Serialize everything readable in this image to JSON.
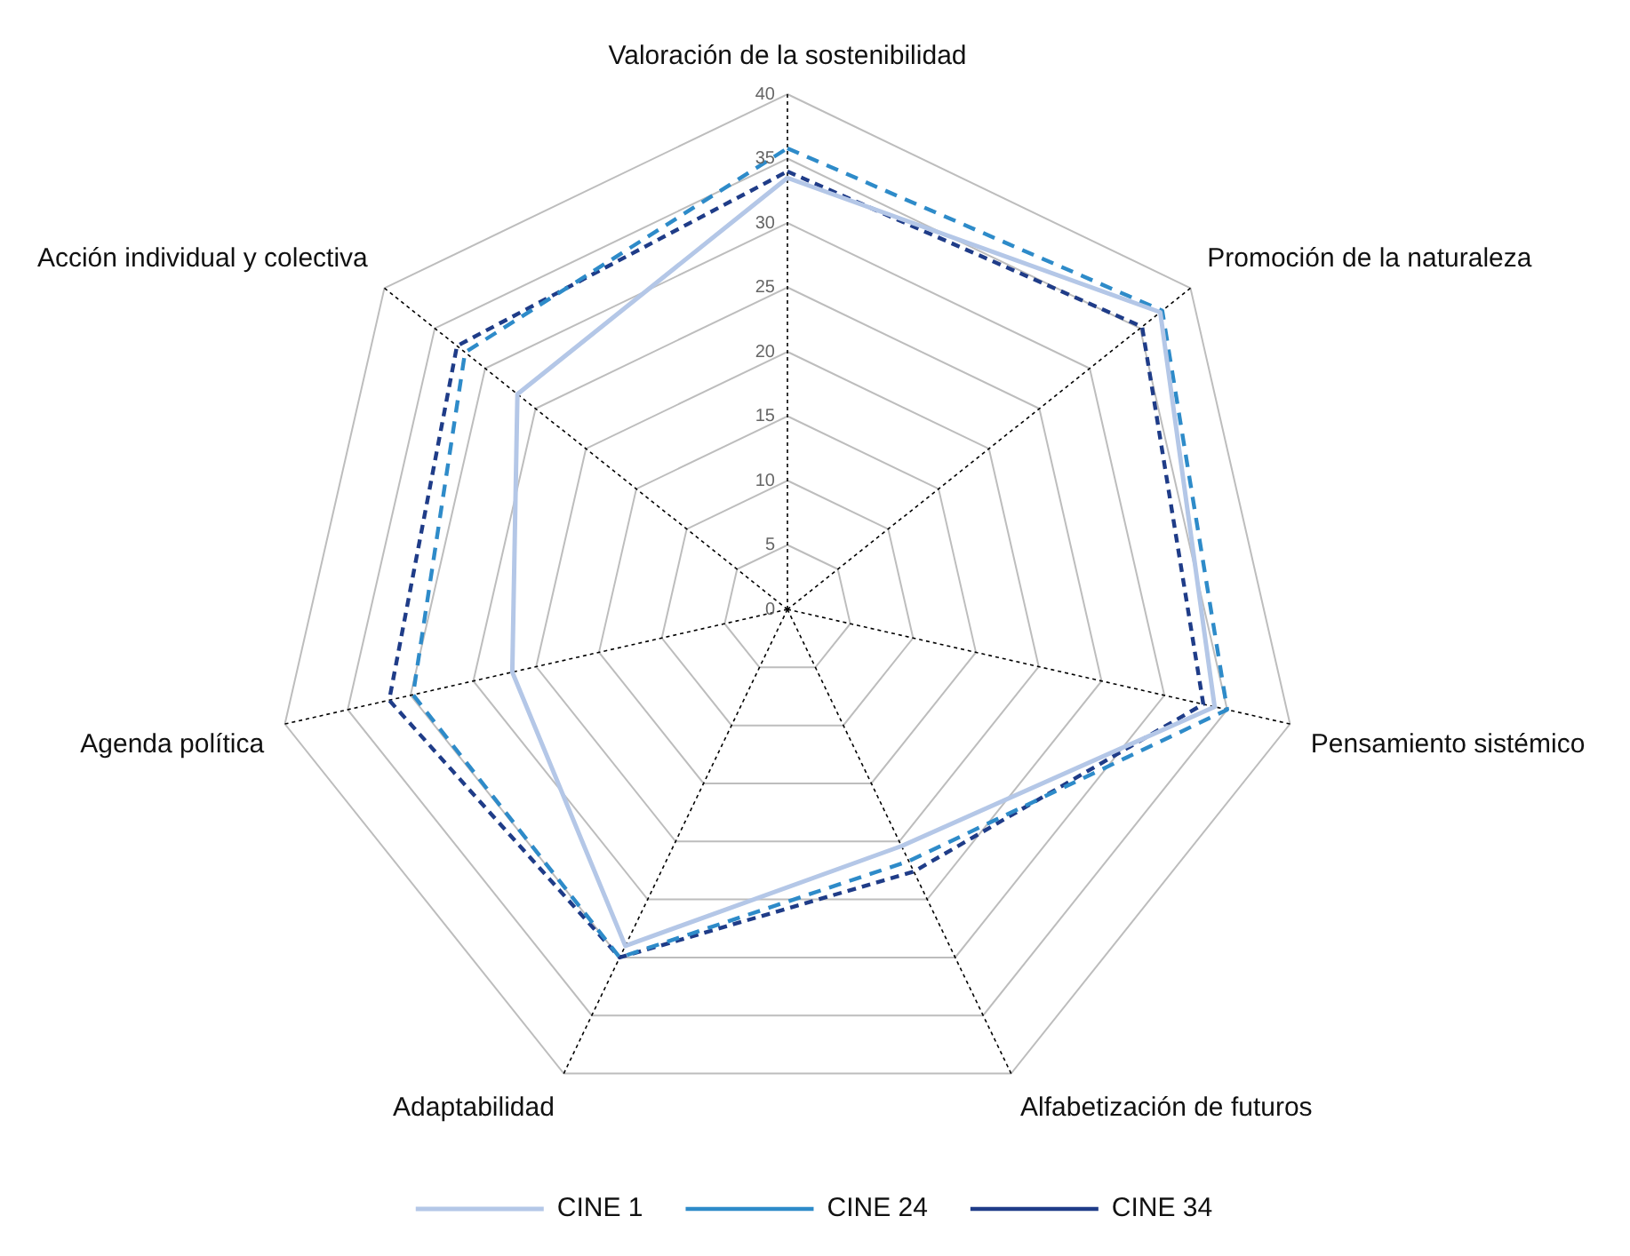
{
  "chart_data": {
    "type": "radar",
    "categories": [
      "Valoración de la sostenibilidad",
      "Promoción de la naturaleza",
      "Pensamiento sistémico",
      "Alfabetización de futuros",
      "Adaptabilidad",
      "Agenda política",
      "Acción individual y colectiva"
    ],
    "series": [
      {
        "name": "CINE 1",
        "color": "#b4c7e7",
        "line_style": "solid",
        "values": [
          33.5,
          37,
          34,
          20.4,
          29,
          21.9,
          26.8
        ]
      },
      {
        "name": "CINE 24",
        "color": "#2e8bc9",
        "line_style": "dashed",
        "values": [
          35.8,
          37.2,
          35,
          21.7,
          30,
          29.8,
          32
        ]
      },
      {
        "name": "CINE 34",
        "color": "#1f3c88",
        "line_style": "dashed",
        "values": [
          34,
          35.2,
          33.1,
          22.6,
          30,
          31.7,
          32.8
        ]
      }
    ],
    "ylim": [
      0,
      40
    ],
    "yticks": [
      0,
      5,
      10,
      15,
      20,
      25,
      30,
      35,
      40
    ],
    "grid": true,
    "legend": "bottom",
    "marker": "none"
  }
}
